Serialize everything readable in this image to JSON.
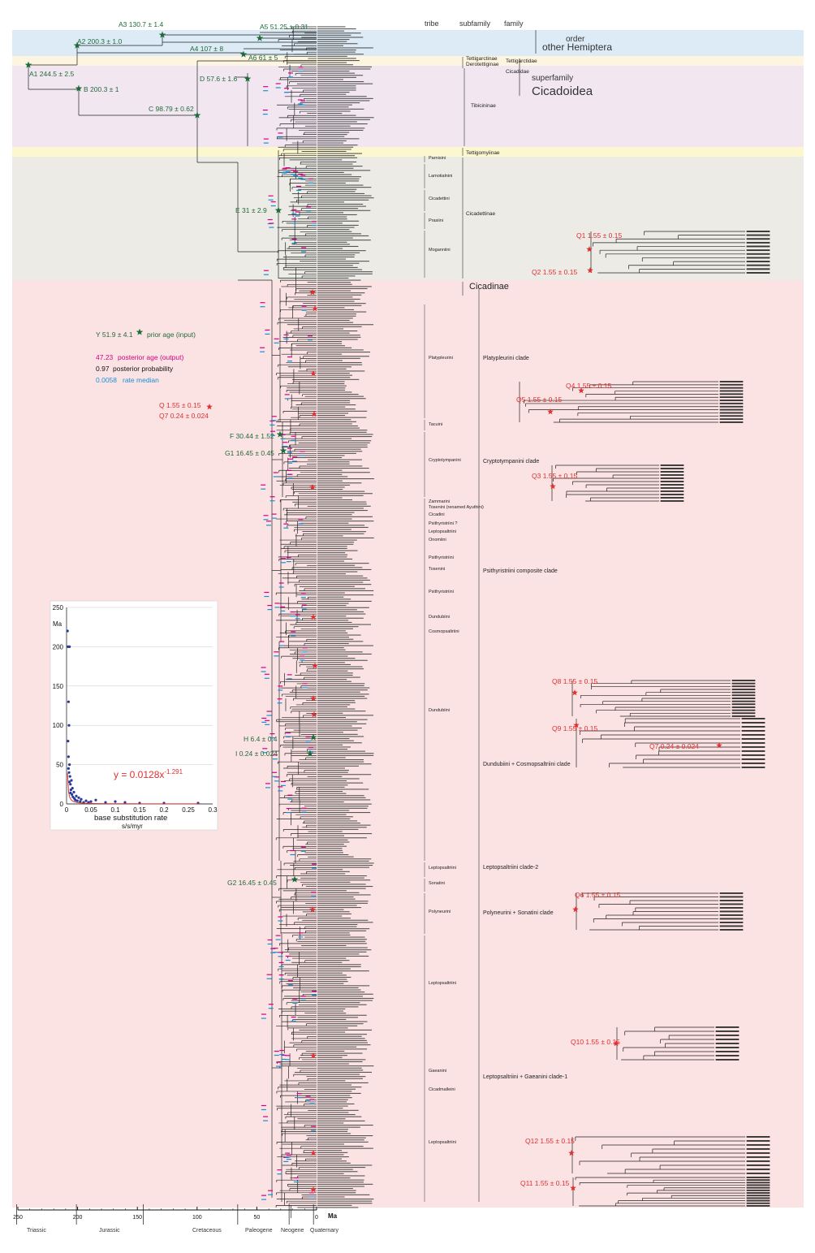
{
  "header": {
    "tribe": "tribe",
    "subfamily": "subfamily",
    "family": "family",
    "order": "order",
    "other_hemiptera": "other Hemiptera",
    "superfamily": "superfamily",
    "cicadoidea": "Cicadoidea"
  },
  "calibrations": [
    {
      "label": "A1  244.5 ± 2.5"
    },
    {
      "label": "A2  200.3 ± 1.0"
    },
    {
      "label": "A3  130.7 ± 1.4"
    },
    {
      "label": "A4  107 ± 8"
    },
    {
      "label": "A5  51.25 ± 0.31"
    },
    {
      "label": "A6  61 ± 5"
    },
    {
      "label": "B  200.3 ± 1"
    },
    {
      "label": "C  98.79 ± 0.62"
    },
    {
      "label": "D  57.6 ± 1.6"
    },
    {
      "label": "E  31 ± 2.9"
    },
    {
      "label": "F  30.44 ± 1.52"
    },
    {
      "label": "G1  16.45 ± 0.45"
    },
    {
      "label": "H  6.4 ± 0.4"
    },
    {
      "label": "I  0.24 ± 0.024"
    },
    {
      "label": "G2  16.45 ± 0.45"
    }
  ],
  "q_labels": [
    {
      "label": "Q1  1.55 ± 0.15"
    },
    {
      "label": "Q2  1.55 ± 0.15"
    },
    {
      "label": "Q4  1.55 ± 0.15"
    },
    {
      "label": "Q5  1.55 ± 0.15"
    },
    {
      "label": "Q3  1.55 ± 0.15"
    },
    {
      "label": "Q8  1.55 ± 0.15"
    },
    {
      "label": "Q9  1.55 ± 0.15"
    },
    {
      "label": "Q7  0.24 ± 0.024"
    },
    {
      "label": "Q6  1.55 ± 0.15"
    },
    {
      "label": "Q10  1.55 ± 0.15"
    },
    {
      "label": "Q12  1.55 ± 0.15"
    },
    {
      "label": "Q11  1.55 ± 0.15"
    }
  ],
  "legend": {
    "prior": "Y  51.9 ± 4.1",
    "prior_desc": "prior age (input)",
    "posterior_val": "47.23",
    "posterior_desc": "posterior age (output)",
    "prob_val": "0.97",
    "prob_desc": "posterior probability",
    "rate_val": "0.0058",
    "rate_desc": "rate median",
    "q_star": "Q  1.55 ± 0.15",
    "q7": "Q7  0.24 ± 0.024"
  },
  "subfamilies": [
    {
      "label": "Tettigarctinae"
    },
    {
      "label": "Derotettiginae"
    },
    {
      "label": "Tibicininae"
    },
    {
      "label": "Tettigomyiinae"
    },
    {
      "label": "Cicadettinae"
    },
    {
      "label": "Cicadinae"
    }
  ],
  "families": [
    {
      "label": "Tettigarctidae"
    },
    {
      "label": "Cicadidae"
    }
  ],
  "tribes": [
    {
      "label": "Parnisini"
    },
    {
      "label": "Lamotialnini"
    },
    {
      "label": "Cicadettini"
    },
    {
      "label": "Prasiini"
    },
    {
      "label": "Moganniini"
    },
    {
      "label": "Platypleurini"
    },
    {
      "label": "Tacuini"
    },
    {
      "label": "Cryptotympanini"
    },
    {
      "label": "Zammarini"
    },
    {
      "label": "Tosenini (renamed Ayuthini)"
    },
    {
      "label": "Cicadini"
    },
    {
      "label": "Psithyristriini ?"
    },
    {
      "label": "Leptopsaltriini"
    },
    {
      "label": "Onomiini"
    },
    {
      "label": "Psithyristriini"
    },
    {
      "label": "Tosenini"
    },
    {
      "label": "Dundubiini"
    },
    {
      "label": "Cosmopsaltriini"
    },
    {
      "label": "Sonatini"
    },
    {
      "label": "Polyneurini"
    },
    {
      "label": "Gaeanini"
    },
    {
      "label": "Cicadmalleini"
    }
  ],
  "clades": [
    {
      "label": "Platypleurini clade"
    },
    {
      "label": "Cryptotympanini clade"
    },
    {
      "label": "Psithyristriini composite clade"
    },
    {
      "label": "Dundubiini + Cosmopsaltriini clade"
    },
    {
      "label": "Leptopsaltriini clade-2"
    },
    {
      "label": "Polyneurini + Sonatini clade"
    },
    {
      "label": "Leptopsaltriini + Gaeanini clade-1"
    }
  ],
  "axis": {
    "unit": "Ma",
    "ticks": [
      {
        "v": 250,
        "label": "250"
      },
      {
        "v": 200,
        "label": "200"
      },
      {
        "v": 150,
        "label": "150"
      },
      {
        "v": 100,
        "label": "100"
      },
      {
        "v": 50,
        "label": "50"
      },
      {
        "v": 0,
        "label": "0"
      }
    ],
    "periods": [
      {
        "label": "Triassic"
      },
      {
        "label": "Jurassic"
      },
      {
        "label": "Cretaceous"
      },
      {
        "label": "Paleogene"
      },
      {
        "label": "Neogene"
      },
      {
        "label": "Quaternary"
      }
    ]
  },
  "inset": {
    "ylabel": "Ma",
    "xlabel": "base substitution rate",
    "xlabel2": "s/s/myr",
    "equation": "y = 0.0128x",
    "exponent": "-1.291",
    "chart_data": {
      "type": "scatter",
      "xlim": [
        0,
        0.3
      ],
      "ylim": [
        0,
        250
      ],
      "xticks": [
        0,
        0.05,
        0.1,
        0.15,
        0.2,
        0.25,
        0.3
      ],
      "yticks": [
        0,
        50,
        100,
        150,
        200,
        250
      ],
      "xtick_labels": [
        "0",
        "0.05",
        "0.1",
        "0.15",
        "0.2",
        "0.25",
        "0.3"
      ],
      "ytick_labels": [
        "0",
        "50",
        "100",
        "150",
        "200",
        "250"
      ],
      "fit": {
        "a": 0.0128,
        "b": -1.291
      },
      "points": [
        [
          0.002,
          220
        ],
        [
          0.003,
          200
        ],
        [
          0.006,
          200
        ],
        [
          0.004,
          130
        ],
        [
          0.005,
          100
        ],
        [
          0.004,
          60
        ],
        [
          0.006,
          50
        ],
        [
          0.01,
          30
        ],
        [
          0.008,
          25
        ],
        [
          0.012,
          20
        ],
        [
          0.015,
          15
        ],
        [
          0.02,
          10
        ],
        [
          0.025,
          8
        ],
        [
          0.03,
          6
        ],
        [
          0.04,
          4
        ],
        [
          0.05,
          3
        ],
        [
          0.06,
          5
        ],
        [
          0.08,
          2
        ],
        [
          0.1,
          3
        ],
        [
          0.12,
          2
        ],
        [
          0.15,
          1
        ],
        [
          0.2,
          1
        ],
        [
          0.27,
          1
        ],
        [
          0.005,
          40
        ],
        [
          0.007,
          35
        ],
        [
          0.009,
          18
        ],
        [
          0.011,
          12
        ],
        [
          0.013,
          9
        ],
        [
          0.016,
          7
        ],
        [
          0.018,
          5
        ],
        [
          0.022,
          4
        ],
        [
          0.028,
          3
        ],
        [
          0.035,
          2
        ],
        [
          0.045,
          2
        ],
        [
          0.003,
          80
        ],
        [
          0.004,
          45
        ],
        [
          0.006,
          28
        ],
        [
          0.008,
          14
        ]
      ]
    }
  },
  "colors": {
    "hemiptera_bg": "#dcebf6",
    "tettigarctid_bg": "#fdf5df",
    "tibicininae_bg": "#f2e7f1",
    "tettigomyiinae_bg": "#fcf7cf",
    "cicadettinae_bg": "#ecebe6",
    "cicadinae_bg": "#fbe3e4",
    "star_green": "#1f6b3a",
    "star_red": "#e03030",
    "pink": "#d6007e",
    "blue": "#1a8fd8",
    "label_green": "#1f6b3a"
  }
}
